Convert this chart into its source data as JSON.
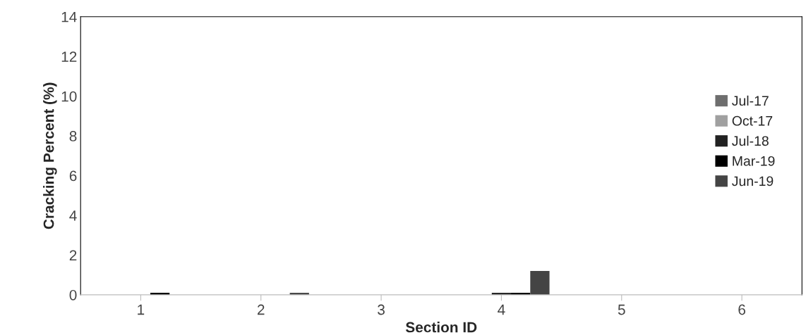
{
  "chart_data": {
    "type": "bar",
    "xlabel": "Section ID",
    "ylabel": "Cracking Percent (%)",
    "categories": [
      "1",
      "2",
      "3",
      "4",
      "5",
      "6"
    ],
    "series": [
      {
        "name": "Jul-17",
        "color": "#6e6e6e",
        "values": [
          0,
          0,
          0,
          0,
          0,
          0
        ]
      },
      {
        "name": "Oct-17",
        "color": "#a0a0a0",
        "values": [
          0,
          0,
          0,
          0,
          0,
          0
        ]
      },
      {
        "name": "Jul-18",
        "color": "#222222",
        "values": [
          0,
          0,
          0,
          0.1,
          0,
          0
        ]
      },
      {
        "name": "Mar-19",
        "color": "#000000",
        "values": [
          0.1,
          0,
          0,
          0.1,
          0,
          0
        ]
      },
      {
        "name": "Jun-19",
        "color": "#444444",
        "values": [
          0,
          0.1,
          0,
          1.2,
          0,
          0
        ]
      }
    ],
    "ylim": [
      0,
      14
    ],
    "yticks": [
      0,
      2,
      4,
      6,
      8,
      10,
      12,
      14
    ],
    "grid": false,
    "legend": "right"
  }
}
